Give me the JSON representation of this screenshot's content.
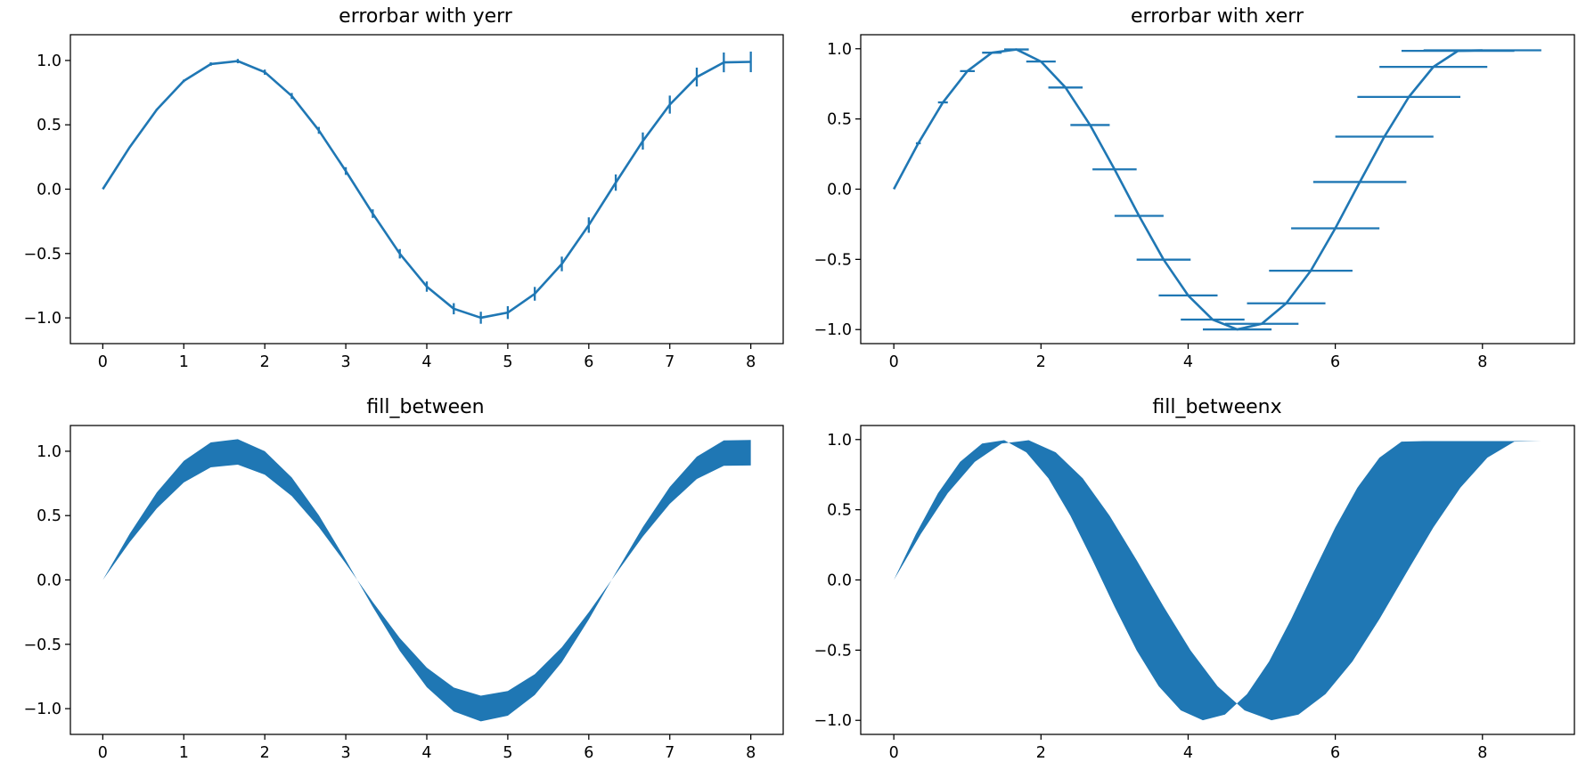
{
  "series_color": "#1f77b4",
  "chart_data": [
    {
      "type": "errorbar",
      "title": "errorbar with yerr",
      "xlim": [
        -0.4,
        8.4
      ],
      "ylim": [
        -1.2,
        1.2
      ],
      "xticks": [
        0,
        1,
        2,
        3,
        4,
        5,
        6,
        7,
        8
      ],
      "xtick_labels": [
        "0",
        "1",
        "2",
        "3",
        "4",
        "5",
        "6",
        "7",
        "8"
      ],
      "yticks": [
        -1.0,
        -0.5,
        0.0,
        0.5,
        1.0
      ],
      "ytick_labels": [
        "−1.0",
        "−0.5",
        "0.0",
        "0.5",
        "1.0"
      ],
      "x": [
        0,
        0.333,
        0.667,
        1.0,
        1.333,
        1.667,
        2.0,
        2.333,
        2.667,
        3.0,
        3.333,
        3.667,
        4.0,
        4.333,
        4.667,
        5.0,
        5.333,
        5.667,
        6.0,
        6.333,
        6.667,
        7.0,
        7.333,
        7.667,
        8.0
      ],
      "y": [
        0.0,
        0.327,
        0.618,
        0.841,
        0.972,
        0.995,
        0.909,
        0.724,
        0.457,
        0.141,
        -0.19,
        -0.502,
        -0.757,
        -0.929,
        -0.999,
        -0.959,
        -0.813,
        -0.581,
        -0.279,
        0.051,
        0.374,
        0.657,
        0.871,
        0.985,
        0.989
      ],
      "yerr": [
        0.0,
        0.033,
        0.067,
        0.1,
        0.133,
        0.167,
        0.2,
        0.233,
        0.267,
        0.3,
        0.333,
        0.367,
        0.4,
        0.433,
        0.467,
        0.5,
        0.533,
        0.567,
        0.6,
        0.633,
        0.667,
        0.7,
        0.733,
        0.767,
        0.8
      ],
      "err_scale": 0.1
    },
    {
      "type": "errorbar",
      "title": "errorbar with xerr",
      "xlim": [
        -0.45,
        9.25
      ],
      "ylim": [
        -1.1,
        1.1
      ],
      "xticks": [
        0,
        2,
        4,
        6,
        8
      ],
      "xtick_labels": [
        "0",
        "2",
        "4",
        "6",
        "8"
      ],
      "yticks": [
        -1.0,
        -0.5,
        0.0,
        0.5,
        1.0
      ],
      "ytick_labels": [
        "−1.0",
        "−0.5",
        "0.0",
        "0.5",
        "1.0"
      ],
      "x": [
        0,
        0.333,
        0.667,
        1.0,
        1.333,
        1.667,
        2.0,
        2.333,
        2.667,
        3.0,
        3.333,
        3.667,
        4.0,
        4.333,
        4.667,
        5.0,
        5.333,
        5.667,
        6.0,
        6.333,
        6.667,
        7.0,
        7.333,
        7.667,
        8.0
      ],
      "y": [
        0.0,
        0.327,
        0.618,
        0.841,
        0.972,
        0.995,
        0.909,
        0.724,
        0.457,
        0.141,
        -0.19,
        -0.502,
        -0.757,
        -0.929,
        -0.999,
        -0.959,
        -0.813,
        -0.581,
        -0.279,
        0.051,
        0.374,
        0.657,
        0.871,
        0.985,
        0.989
      ],
      "xerr": [
        0.0,
        0.033,
        0.067,
        0.1,
        0.133,
        0.167,
        0.2,
        0.233,
        0.267,
        0.3,
        0.333,
        0.367,
        0.4,
        0.433,
        0.467,
        0.5,
        0.533,
        0.567,
        0.6,
        0.633,
        0.667,
        0.7,
        0.733,
        0.767,
        0.8
      ],
      "shift": [
        0.0,
        0.0,
        0.0,
        0.0,
        0.0,
        0.0,
        0.0,
        0.0,
        0.0,
        0.0,
        0.0,
        0.0,
        0.0,
        0.0,
        0.0,
        0.0,
        0.0,
        0.0,
        0.0,
        0.0,
        0.0,
        0.0,
        0.0,
        0.0,
        0.0
      ]
    },
    {
      "type": "area",
      "title": "fill_between",
      "xlim": [
        -0.4,
        8.4
      ],
      "ylim": [
        -1.2,
        1.2
      ],
      "xticks": [
        0,
        1,
        2,
        3,
        4,
        5,
        6,
        7,
        8
      ],
      "xtick_labels": [
        "0",
        "1",
        "2",
        "3",
        "4",
        "5",
        "6",
        "7",
        "8"
      ],
      "yticks": [
        -1.0,
        -0.5,
        0.0,
        0.5,
        1.0
      ],
      "ytick_labels": [
        "−1.0",
        "−0.5",
        "0.0",
        "0.5",
        "1.0"
      ],
      "x": [
        0,
        0.333,
        0.667,
        1.0,
        1.333,
        1.667,
        2.0,
        2.333,
        2.667,
        3.0,
        3.333,
        3.667,
        4.0,
        4.333,
        4.667,
        5.0,
        5.333,
        5.667,
        6.0,
        6.333,
        6.667,
        7.0,
        7.333,
        7.667,
        8.0
      ],
      "y1": [
        0.0,
        0.36,
        0.68,
        0.925,
        1.069,
        1.094,
        1.0,
        0.796,
        0.503,
        0.155,
        -0.209,
        -0.552,
        -0.833,
        -1.022,
        -1.099,
        -1.055,
        -0.894,
        -0.639,
        -0.307,
        0.056,
        0.411,
        0.723,
        0.958,
        1.084,
        1.088
      ],
      "y2": [
        0.0,
        0.294,
        0.556,
        0.757,
        0.875,
        0.896,
        0.818,
        0.652,
        0.411,
        0.127,
        -0.171,
        -0.452,
        -0.681,
        -0.836,
        -0.899,
        -0.863,
        -0.732,
        -0.523,
        -0.251,
        0.046,
        0.337,
        0.591,
        0.784,
        0.887,
        0.89
      ]
    },
    {
      "type": "area",
      "orientation": "horizontal",
      "title": "fill_betweenx",
      "xlim": [
        -0.45,
        9.25
      ],
      "ylim": [
        -1.1,
        1.1
      ],
      "xticks": [
        0,
        2,
        4,
        6,
        8
      ],
      "xtick_labels": [
        "0",
        "2",
        "4",
        "6",
        "8"
      ],
      "yticks": [
        -1.0,
        -0.5,
        0.0,
        0.5,
        1.0
      ],
      "ytick_labels": [
        "−1.0",
        "−0.5",
        "0.0",
        "0.5",
        "1.0"
      ],
      "y": [
        0.0,
        0.327,
        0.618,
        0.841,
        0.972,
        0.995,
        0.909,
        0.724,
        0.457,
        0.141,
        -0.19,
        -0.502,
        -0.757,
        -0.929,
        -0.999,
        -0.959,
        -0.813,
        -0.581,
        -0.279,
        0.051,
        0.374,
        0.657,
        0.871,
        0.985,
        0.989
      ],
      "x1": [
        0.0,
        0.3,
        0.6,
        0.9,
        1.2,
        1.5,
        1.8,
        2.1,
        2.4,
        2.7,
        3.0,
        3.3,
        3.6,
        3.9,
        4.2,
        4.5,
        4.8,
        5.1,
        5.4,
        5.7,
        6.0,
        6.3,
        6.6,
        6.9,
        7.2
      ],
      "x2": [
        0.0,
        0.367,
        0.733,
        1.1,
        1.467,
        1.833,
        2.2,
        2.567,
        2.933,
        3.3,
        3.667,
        4.033,
        4.4,
        4.767,
        5.133,
        5.5,
        5.867,
        6.233,
        6.6,
        6.967,
        7.333,
        7.7,
        8.067,
        8.433,
        8.8
      ]
    }
  ]
}
